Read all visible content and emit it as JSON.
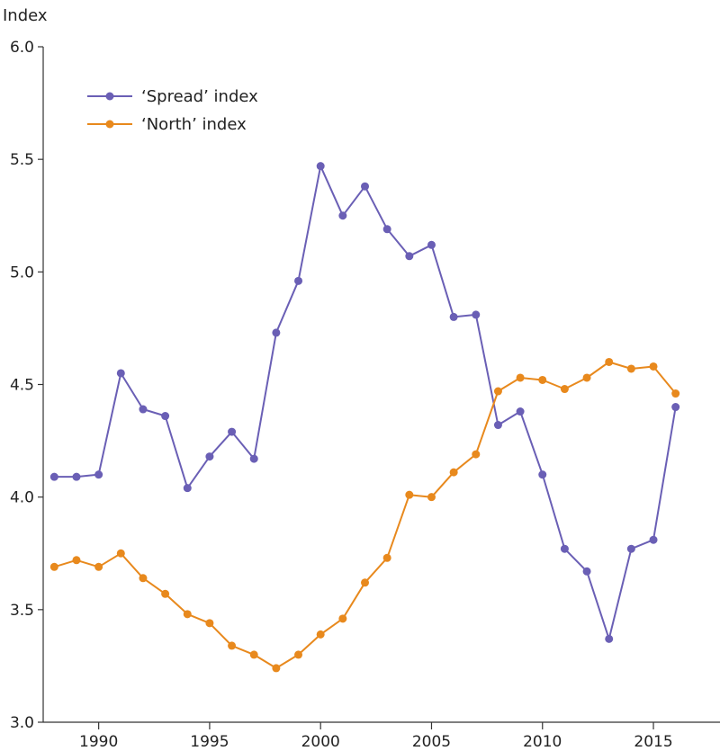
{
  "chart_data": {
    "type": "line",
    "title": "",
    "ylabel": "Index",
    "xlabel": "",
    "xlim": [
      1987.5,
      2018
    ],
    "ylim": [
      3.0,
      6.0
    ],
    "grid": false,
    "legend_position": "top-left",
    "x_ticks": [
      1990,
      1995,
      2000,
      2005,
      2010,
      2015
    ],
    "x_tick_labels": [
      "1990",
      "1995",
      "2000",
      "2005",
      "2010",
      "2015"
    ],
    "y_ticks": [
      3.0,
      3.5,
      4.0,
      4.5,
      5.0,
      5.5,
      6.0
    ],
    "y_tick_labels": [
      "3.0",
      "3.5",
      "4.0",
      "4.5",
      "5.0",
      "5.5",
      "6.0"
    ],
    "x": [
      1988,
      1989,
      1990,
      1991,
      1992,
      1993,
      1994,
      1995,
      1996,
      1997,
      1998,
      1999,
      2000,
      2001,
      2002,
      2003,
      2004,
      2005,
      2006,
      2007,
      2008,
      2009,
      2010,
      2011,
      2012,
      2013,
      2014,
      2015,
      2016
    ],
    "series": [
      {
        "name": "‘Spread’ index",
        "color": "#6a5fb5",
        "values": [
          4.09,
          4.09,
          4.1,
          4.55,
          4.39,
          4.36,
          4.04,
          4.18,
          4.29,
          4.17,
          4.73,
          4.96,
          5.47,
          5.25,
          5.38,
          5.19,
          5.07,
          5.12,
          4.8,
          4.81,
          4.32,
          4.38,
          4.1,
          3.77,
          3.67,
          3.37,
          3.77,
          3.81,
          4.4
        ]
      },
      {
        "name": "‘North’ index",
        "color": "#e8891d",
        "values": [
          3.69,
          3.72,
          3.69,
          3.75,
          3.64,
          3.57,
          3.48,
          3.44,
          3.34,
          3.3,
          3.24,
          3.3,
          3.39,
          3.46,
          3.62,
          3.73,
          4.01,
          4.0,
          4.11,
          4.19,
          4.47,
          4.53,
          4.52,
          4.48,
          4.53,
          4.6,
          4.57,
          4.58,
          4.46
        ]
      }
    ]
  }
}
